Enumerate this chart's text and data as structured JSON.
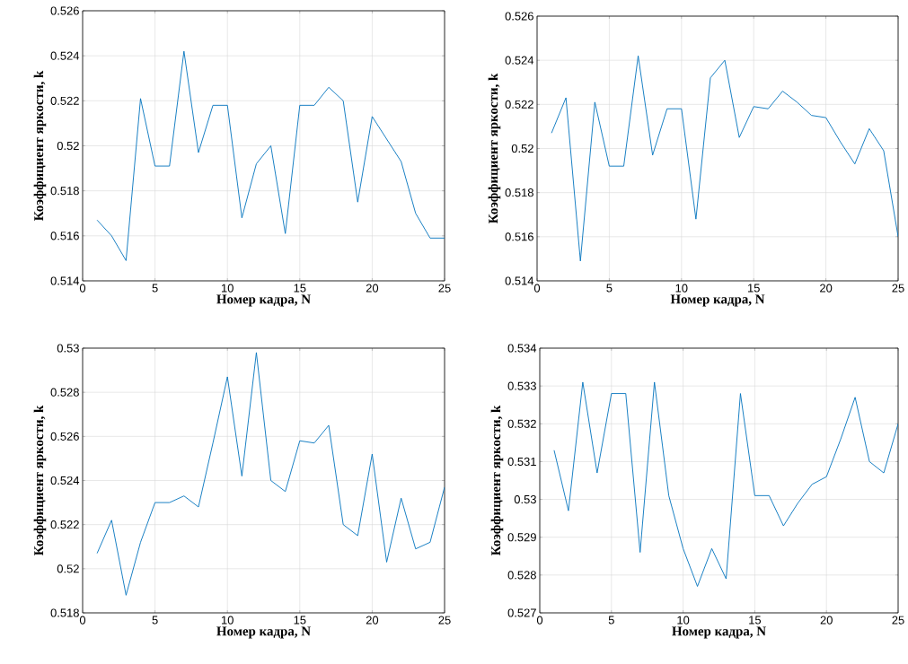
{
  "chart_data": [
    {
      "type": "line",
      "xlabel": "Номер кадра, N",
      "ylabel": "Коэффициент яркости, k",
      "x": [
        1,
        2,
        3,
        4,
        5,
        6,
        7,
        8,
        9,
        10,
        11,
        12,
        13,
        14,
        15,
        16,
        17,
        18,
        19,
        20,
        21,
        22,
        23,
        24,
        25
      ],
      "series": [
        {
          "color": "#0072bd",
          "values": [
            0.5167,
            0.516,
            0.5149,
            0.5221,
            0.5191,
            0.5191,
            0.5242,
            0.5197,
            0.5218,
            0.5218,
            0.5168,
            0.5192,
            0.52,
            0.5161,
            0.5218,
            0.5218,
            0.5226,
            0.522,
            0.5175,
            0.5213,
            0.5203,
            0.5193,
            0.517,
            0.5159,
            0.5159
          ]
        }
      ],
      "xlim": [
        0,
        25
      ],
      "ylim": [
        0.514,
        0.526
      ],
      "xticks": [
        0,
        5,
        10,
        15,
        20,
        25
      ],
      "yticks": [
        0.514,
        0.516,
        0.518,
        0.52,
        0.522,
        0.524,
        0.526
      ],
      "grid": true
    },
    {
      "type": "line",
      "xlabel": "Номер кадра, N",
      "ylabel": "Коэффициент яркости, k",
      "x": [
        1,
        2,
        3,
        4,
        5,
        6,
        7,
        8,
        9,
        10,
        11,
        12,
        13,
        14,
        15,
        16,
        17,
        18,
        19,
        20,
        21,
        22,
        23,
        24,
        25
      ],
      "series": [
        {
          "color": "#0072bd",
          "values": [
            0.5207,
            0.5223,
            0.5149,
            0.5221,
            0.5192,
            0.5192,
            0.5242,
            0.5197,
            0.5218,
            0.5218,
            0.5168,
            0.5232,
            0.524,
            0.5205,
            0.5219,
            0.5218,
            0.5226,
            0.5221,
            0.5215,
            0.5214,
            0.5203,
            0.5193,
            0.5209,
            0.5199,
            0.516
          ]
        }
      ],
      "xlim": [
        0,
        25
      ],
      "ylim": [
        0.514,
        0.526
      ],
      "xticks": [
        0,
        5,
        10,
        15,
        20,
        25
      ],
      "yticks": [
        0.514,
        0.516,
        0.518,
        0.52,
        0.522,
        0.524,
        0.526
      ],
      "grid": true
    },
    {
      "type": "line",
      "xlabel": "Номер кадра, N",
      "ylabel": "Коэффициент яркости, k",
      "x": [
        1,
        2,
        3,
        4,
        5,
        6,
        7,
        8,
        9,
        10,
        11,
        12,
        13,
        14,
        15,
        16,
        17,
        18,
        19,
        20,
        21,
        22,
        23,
        24,
        25
      ],
      "series": [
        {
          "color": "#0072bd",
          "values": [
            0.5207,
            0.5222,
            0.5188,
            0.5212,
            0.523,
            0.523,
            0.5233,
            0.5228,
            0.5257,
            0.5287,
            0.5242,
            0.5298,
            0.524,
            0.5235,
            0.5258,
            0.5257,
            0.5265,
            0.522,
            0.5215,
            0.5252,
            0.5203,
            0.5232,
            0.5209,
            0.5212,
            0.5237
          ]
        }
      ],
      "xlim": [
        0,
        25
      ],
      "ylim": [
        0.518,
        0.53
      ],
      "xticks": [
        0,
        5,
        10,
        15,
        20,
        25
      ],
      "yticks": [
        0.518,
        0.52,
        0.522,
        0.524,
        0.526,
        0.528,
        0.53
      ],
      "grid": true
    },
    {
      "type": "line",
      "xlabel": "Номер кадра, N",
      "ylabel": "Коэффициент яркости, k",
      "x": [
        1,
        2,
        3,
        4,
        5,
        6,
        7,
        8,
        9,
        10,
        11,
        12,
        13,
        14,
        15,
        16,
        17,
        18,
        19,
        20,
        21,
        22,
        23,
        24,
        25
      ],
      "series": [
        {
          "color": "#0072bd",
          "values": [
            0.5313,
            0.5297,
            0.5331,
            0.5307,
            0.5328,
            0.5328,
            0.5286,
            0.5331,
            0.5301,
            0.5287,
            0.5277,
            0.5287,
            0.5279,
            0.5328,
            0.5301,
            0.5301,
            0.5293,
            0.5299,
            0.5304,
            0.5306,
            0.5316,
            0.5327,
            0.531,
            0.5307,
            0.532
          ]
        }
      ],
      "xlim": [
        0,
        25
      ],
      "ylim": [
        0.527,
        0.534
      ],
      "xticks": [
        0,
        5,
        10,
        15,
        20,
        25
      ],
      "yticks": [
        0.527,
        0.528,
        0.529,
        0.53,
        0.531,
        0.532,
        0.533,
        0.534
      ],
      "grid": true
    }
  ]
}
